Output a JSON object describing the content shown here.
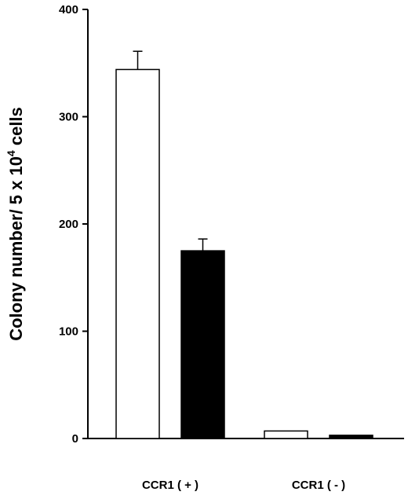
{
  "chart_data": {
    "type": "bar",
    "categories": [
      "CCR1 ( + )",
      "CCR1 ( - )"
    ],
    "series": [
      {
        "color": "#ffffff",
        "values": [
          344,
          7
        ],
        "errors": [
          17,
          0
        ]
      },
      {
        "color": "#000000",
        "values": [
          175,
          3
        ],
        "errors": [
          11,
          0
        ]
      }
    ],
    "ylabel": "Colony number/ 5 x 10",
    "ylabel_superscript": "4",
    "ylabel_suffix": " cells",
    "ylim": [
      0,
      400
    ],
    "yticks": [
      0,
      100,
      200,
      300,
      400
    ],
    "grid": false
  }
}
